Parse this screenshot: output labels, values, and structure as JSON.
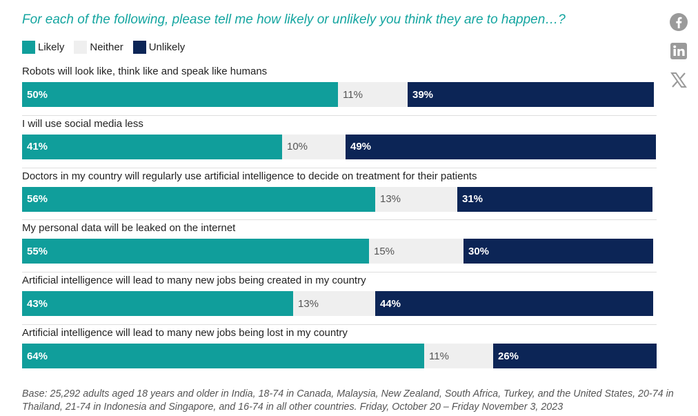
{
  "title": "For each of the following, please tell me how likely or unlikely you think they are to happen…?",
  "colors": {
    "likely": "#109e9b",
    "neither": "#efefef",
    "unlikely": "#0c2556",
    "title": "#14a5a0"
  },
  "legend": [
    {
      "label": "Likely",
      "key": "likely"
    },
    {
      "label": "Neither",
      "key": "neither"
    },
    {
      "label": "Unlikely",
      "key": "unlikely"
    }
  ],
  "share": [
    {
      "name": "facebook-share-button",
      "icon": "facebook-icon"
    },
    {
      "name": "linkedin-share-button",
      "icon": "linkedin-icon"
    },
    {
      "name": "x-share-button",
      "icon": "x-icon"
    }
  ],
  "chart_data": {
    "type": "bar",
    "orientation": "horizontal",
    "stacked": true,
    "title": "For each of the following, please tell me how likely or unlikely you think they are to happen…?",
    "xlabel": "",
    "ylabel": "",
    "legend_position": "top-left",
    "grid": false,
    "categories": [
      "Robots will look like, think like and speak like humans",
      "I will use social media less",
      "Doctors in my country will regularly use artificial intelligence to decide on treatment for their patients",
      "My personal data will be leaked on the internet",
      "Artificial intelligence will lead to many new jobs being created in my country",
      "Artificial intelligence will lead to many new jobs being lost in my country"
    ],
    "series": [
      {
        "name": "Likely",
        "key": "likely",
        "values": [
          50,
          41,
          56,
          55,
          43,
          64
        ]
      },
      {
        "name": "Neither",
        "key": "neither",
        "values": [
          11,
          10,
          13,
          15,
          13,
          11
        ]
      },
      {
        "name": "Unlikely",
        "key": "unlikely",
        "values": [
          39,
          49,
          31,
          30,
          44,
          26
        ]
      }
    ],
    "value_suffix": "%"
  },
  "footer": "Base: 25,292 adults aged 18 years and older in India, 18-74 in Canada, Malaysia, New Zealand, South Africa, Turkey, and the United States, 20-74 in Thailand, 21-74 in Indonesia and Singapore, and 16-74 in all other countries. Friday, October 20 – Friday November 3, 2023"
}
